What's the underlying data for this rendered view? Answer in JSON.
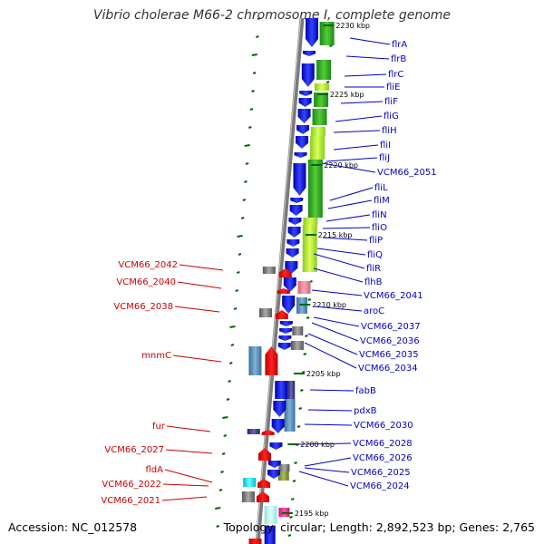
{
  "title": "Vibrio cholerae M66-2 chromosome I, complete genome",
  "footer": {
    "accession": "Accession: NC_012578",
    "topology": "Topology: circular; Length: 2,892,523 bp; Genes: 2,765"
  },
  "colors": {
    "right_label": "#0000cc",
    "left_label": "#cc0000",
    "forward_gene": "#1a1aee",
    "reverse_gene": "#ee1111",
    "backbone": "#888888",
    "tick": "#006600"
  },
  "ticks": [
    {
      "text": "2230 kbp",
      "kbp": 2230
    },
    {
      "text": "2225 kbp",
      "kbp": 2225
    },
    {
      "text": "2220 kbp",
      "kbp": 2220
    },
    {
      "text": "2215 kbp",
      "kbp": 2215
    },
    {
      "text": "2210 kbp",
      "kbp": 2210
    },
    {
      "text": "2205 kbp",
      "kbp": 2205
    },
    {
      "text": "2200 kbp",
      "kbp": 2200
    },
    {
      "text": "2195 kbp",
      "kbp": 2195
    }
  ],
  "right_labels": [
    "flrA",
    "flrB",
    "flrC",
    "fliE",
    "fliF",
    "fliG",
    "fliH",
    "fliI",
    "fliJ",
    "VCM66_2051",
    "fliL",
    "fliM",
    "fliN",
    "fliO",
    "fliP",
    "fliQ",
    "fliR",
    "flhB",
    "VCM66_2041",
    "aroC",
    "VCM66_2037",
    "VCM66_2036",
    "VCM66_2035",
    "VCM66_2034",
    "fabB",
    "pdxB",
    "VCM66_2030",
    "VCM66_2028",
    "VCM66_2026",
    "VCM66_2025",
    "VCM66_2024"
  ],
  "left_labels": [
    "VCM66_2042",
    "VCM66_2040",
    "VCM66_2038",
    "mnmC",
    "fur",
    "VCM66_2027",
    "fldA",
    "VCM66_2022",
    "VCM66_2021"
  ]
}
